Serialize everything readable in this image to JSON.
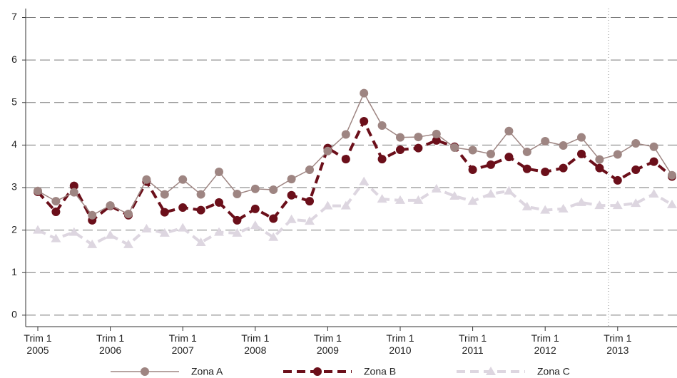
{
  "chart_data": {
    "type": "line",
    "categories": [
      "Trim 1\n2005",
      null,
      null,
      null,
      "Trim 1\n2006",
      null,
      null,
      null,
      "Trim 1\n2007",
      null,
      null,
      null,
      "Trim 1\n2008",
      null,
      null,
      null,
      "Trim 1\n2009",
      null,
      null,
      null,
      "Trim 1\n2010",
      null,
      null,
      null,
      "Trim 1\n2011",
      null,
      null,
      null,
      "Trim 1\n2012",
      null,
      null,
      null,
      "Trim 1\n2013",
      null,
      null,
      null
    ],
    "series": [
      {
        "name": "Zona A",
        "color": "#9e8582",
        "dash": "solid",
        "marker": "circle",
        "width": 1.5,
        "values": [
          2.92,
          2.68,
          2.89,
          2.35,
          2.58,
          2.38,
          3.19,
          2.84,
          3.19,
          2.84,
          3.37,
          2.85,
          2.97,
          2.95,
          3.2,
          3.42,
          3.86,
          4.25,
          5.22,
          4.46,
          4.18,
          4.19,
          4.26,
          3.94,
          3.88,
          3.79,
          4.33,
          3.84,
          4.09,
          3.99,
          4.18,
          3.66,
          3.78,
          4.04,
          3.96,
          3.29
        ]
      },
      {
        "name": "Zona B",
        "color": "#6b0f1a",
        "dash": "dashed",
        "marker": "circle",
        "width": 4,
        "values": [
          2.9,
          2.43,
          3.04,
          2.23,
          2.57,
          2.35,
          3.14,
          2.42,
          2.53,
          2.47,
          2.65,
          2.23,
          2.5,
          2.27,
          2.82,
          2.68,
          3.93,
          3.67,
          4.56,
          3.67,
          3.89,
          3.93,
          4.11,
          3.96,
          3.42,
          3.54,
          3.72,
          3.44,
          3.37,
          3.46,
          3.79,
          3.46,
          3.17,
          3.42,
          3.61,
          3.26
        ]
      },
      {
        "name": "Zona C",
        "color": "#ddd6e0",
        "dash": "dashed",
        "marker": "triangle",
        "width": 4,
        "values": [
          2.0,
          1.8,
          1.95,
          1.66,
          1.88,
          1.66,
          2.03,
          1.93,
          2.05,
          1.71,
          1.95,
          1.93,
          2.11,
          1.83,
          2.25,
          2.21,
          2.57,
          2.57,
          3.14,
          2.73,
          2.7,
          2.7,
          2.97,
          2.8,
          2.68,
          2.85,
          2.92,
          2.55,
          2.47,
          2.5,
          2.65,
          2.58,
          2.58,
          2.63,
          2.85,
          2.6
        ]
      }
    ],
    "ylim": [
      -0.27,
      7.21
    ],
    "yticks": [
      0,
      1,
      2,
      3,
      4,
      5,
      6,
      7
    ],
    "grid": true,
    "legend": "bottom"
  }
}
